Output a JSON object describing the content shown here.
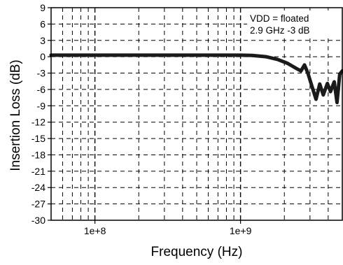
{
  "chart_data": {
    "type": "line",
    "xscale": "log",
    "xlabel": "Frequency (Hz)",
    "ylabel": "Insertion Loss (dB)",
    "xlim": [
      50000000,
      5000000000
    ],
    "ylim": [
      -30,
      9
    ],
    "x_tick_labels": [
      {
        "value": 100000000,
        "label": "1e+8"
      },
      {
        "value": 1000000000,
        "label": "1e+9"
      }
    ],
    "y_ticks": [
      9,
      6,
      3,
      0,
      -3,
      -6,
      -9,
      -12,
      -15,
      -18,
      -21,
      -24,
      -27,
      -30
    ],
    "grid": true,
    "annotations": [
      "VDD = floated",
      "2.9 GHz -3 dB"
    ],
    "series": [
      {
        "color": "#1a1a1a",
        "points": [
          [
            50000000,
            0.3
          ],
          [
            100000000,
            0.3
          ],
          [
            300000000,
            0.3
          ],
          [
            700000000,
            0.3
          ],
          [
            1000000000,
            0.3
          ],
          [
            1200000000,
            0.25
          ],
          [
            1500000000,
            0.0
          ],
          [
            1800000000,
            -0.5
          ],
          [
            2100000000,
            -1.2
          ],
          [
            2400000000,
            -2.1
          ],
          [
            2600000000,
            -2.6
          ],
          [
            2750000000,
            -1.5
          ],
          [
            2900000000,
            -3.0
          ],
          [
            3100000000,
            -5.5
          ],
          [
            3300000000,
            -7.8
          ],
          [
            3500000000,
            -5.0
          ],
          [
            3700000000,
            -7.0
          ],
          [
            3950000000,
            -4.9
          ],
          [
            4150000000,
            -6.4
          ],
          [
            4400000000,
            -4.6
          ],
          [
            4600000000,
            -8.4
          ],
          [
            4800000000,
            -3.2
          ],
          [
            5000000000,
            -2.6
          ]
        ]
      }
    ]
  }
}
